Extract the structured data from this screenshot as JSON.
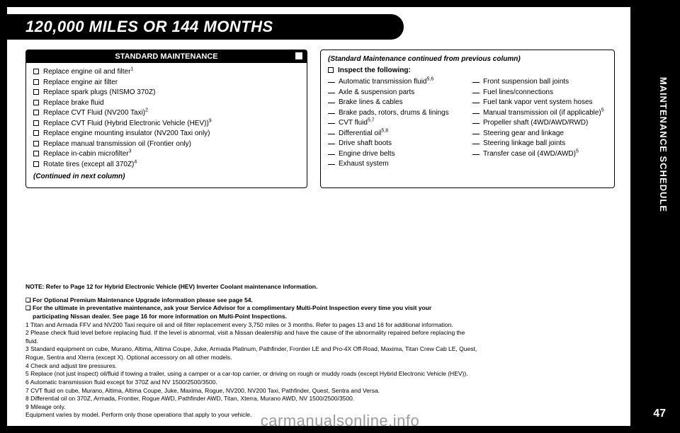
{
  "heading": "120,000 MILES OR 144 MONTHS",
  "standard_maintenance": {
    "title": "STANDARD MAINTENANCE",
    "items": [
      "Replace engine oil and filter<sup>1</sup>",
      "Replace engine air filter",
      "Replace spark plugs (NISMO 370Z)",
      "Replace brake fluid",
      "Replace CVT Fluid (NV200 Taxi)<sup>2</sup>",
      "Replace CVT Fluid (Hybrid Electronic Vehicle (HEV))<sup>9</sup>",
      "Replace engine mounting insulator (NV200 Taxi only)",
      "Replace manual transmission oil (Frontier only)",
      "Replace in-cabin microfilter<sup>3</sup>",
      "Rotate tires (except all 370Z)<sup>4</sup>"
    ],
    "continued": "(Continued in next column)"
  },
  "standard_maintenance_continued": {
    "top_line": "(Standard Maintenance continued from previous column)",
    "subhead": "Inspect the following:",
    "col1": [
      "Automatic transmission fluid<sup>5,6</sup>",
      "Axle & suspension parts",
      "Brake lines & cables",
      "Brake pads, rotors, drums & linings",
      "CVT fluid<sup>5,7</sup>",
      "Differential oil<sup>5,8</sup>",
      "Drive shaft boots",
      "Engine drive belts",
      "Exhaust system"
    ],
    "col2": [
      "Front suspension ball joints",
      "Fuel lines/connections",
      "Fuel tank vapor vent system hoses",
      "Manual transmission oil (if applicable)<sup>5</sup>",
      "Propeller shaft (4WD/AWD/RWD)",
      "Steering gear and linkage",
      "Steering linkage ball joints",
      "Transfer case oil (4WD/AWD)<sup>5</sup>"
    ]
  },
  "notes": {
    "line_note_bold": "NOTE: Refer to Page 12 for Hybrid Electronic Vehicle (HEV) Inverter Coolant maintenance information.",
    "line_opt1": "❏ For Optional Premium Maintenance Upgrade information please see page 54.",
    "line_opt2a": "❏ For the ultimate in preventative maintenance, ask your Service Advisor for a complimentary Multi-Point Inspection every time you visit your",
    "line_opt2b": "participating Nissan dealer. See page 16 for more information on Multi-Point Inspections.",
    "fn1": "1 Titan and Armada FFV and NV200 Taxi require oil and oil filter replacement every 3,750 miles or 3 months. Refer to pages 13 and 16 for additional information.",
    "fn2a": "2 Please check fluid level before replacing fluid. If the level is abnormal, visit a Nissan dealership and have the cause of the abnormality repaired before replacing the",
    "fn2b": "fluid.",
    "fn3a": "3 Standard equipment on cube, Murano, Altima, Altima Coupe, Juke, Armada Platinum, Pathfinder, Frontier LE and Pro-4X Off-Road, Maxima, Titan Crew Cab LE, Quest,",
    "fn3b": "Rogue, Sentra and Xterra (except X). Optional accessory on all other models.",
    "fn4": "4 Check and adjust tire pressures.",
    "fn5": "5 Replace (not just inspect) oil/fluid if towing a trailer, using a camper or a car-top carrier, or driving on rough or muddy roads (except Hybrid Electronic Vehicle (HEV)).",
    "fn6": "6 Automatic transmission fluid except for 370Z and NV 1500/2500/3500.",
    "fn7": "7 CVT fluid on cube, Murano, Altima, Altima Coupe, Juke, Maxima, Rogue, NV200, NV200 Taxi, Pathfinder, Quest, Sentra and Versa.",
    "fn8": "8 Differential oil on 370Z, Armada, Frontier, Rogue AWD, Pathfinder AWD, Titan, Xterra, Murano AWD, NV 1500/2500/3500.",
    "fn9": "9 Mileage only.",
    "fn_equip": "Equipment varies by model. Perform only those operations that apply to your vehicle."
  },
  "sidebar": "MAINTENANCE SCHEDULE",
  "page_number": "47",
  "watermark": "carmanualsonline.info"
}
